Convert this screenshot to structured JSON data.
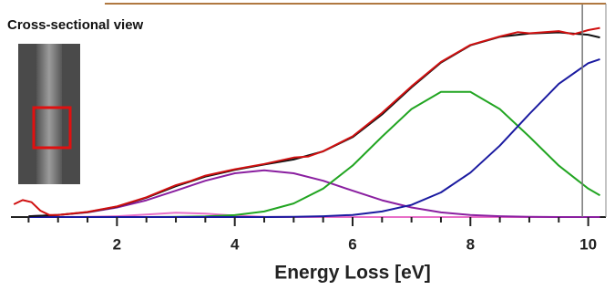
{
  "chart_data": {
    "type": "line",
    "inset_title": "Cross-sectional view",
    "x_label": "Energy Loss [eV]",
    "xlim": [
      0.2,
      10.3
    ],
    "xticks": [
      2,
      4,
      6,
      8,
      10
    ],
    "xminorticks": [
      0.5,
      1,
      1.5,
      2.5,
      3,
      3.5,
      4.5,
      5,
      5.5,
      6.5,
      7,
      7.5,
      8.5,
      9,
      9.5
    ],
    "ylim": [
      0,
      1
    ],
    "marker_line_x": 9.9,
    "marker_line_color": "#777777",
    "series": [
      {
        "color": "#e86fc8",
        "x": [
          0.5,
          1,
          1.5,
          2,
          2.5,
          3,
          3.5,
          4,
          4.5,
          5,
          5.5,
          6,
          6.5,
          7,
          7.5,
          8,
          8.5,
          9,
          9.5,
          10,
          10.2
        ],
        "values": [
          0,
          0,
          0.001,
          0.004,
          0.012,
          0.02,
          0.016,
          0.007,
          0.001,
          0,
          0,
          0,
          0,
          0,
          0,
          0,
          0,
          0,
          0,
          0,
          0
        ]
      },
      {
        "color": "#8a1fa0",
        "x": [
          0.5,
          1,
          1.5,
          2,
          2.5,
          3,
          3.5,
          4,
          4.5,
          5,
          5.5,
          6,
          6.5,
          7,
          7.5,
          8,
          8.5,
          9,
          9.5,
          10,
          10.2
        ],
        "values": [
          0.004,
          0.01,
          0.022,
          0.045,
          0.079,
          0.124,
          0.171,
          0.206,
          0.22,
          0.206,
          0.171,
          0.124,
          0.079,
          0.045,
          0.022,
          0.01,
          0.004,
          0.001,
          0,
          0,
          0
        ]
      },
      {
        "color": "#22a522",
        "x": [
          0.5,
          1,
          1.5,
          2,
          2.5,
          3,
          3.5,
          4,
          4.5,
          5,
          5.5,
          6,
          6.5,
          7,
          7.5,
          8,
          8.5,
          9,
          9.5,
          10,
          10.2
        ],
        "values": [
          0,
          0,
          0,
          0,
          0,
          0.001,
          0.003,
          0.009,
          0.026,
          0.064,
          0.134,
          0.242,
          0.378,
          0.508,
          0.589,
          0.589,
          0.508,
          0.378,
          0.242,
          0.134,
          0.102
        ]
      },
      {
        "color": "#1a1aa0",
        "x": [
          0.5,
          1,
          1.5,
          2,
          2.5,
          3,
          3.5,
          4,
          4.5,
          5,
          5.5,
          6,
          6.5,
          7,
          7.5,
          8,
          8.5,
          9,
          9.5,
          10,
          10.2
        ],
        "values": [
          0,
          0,
          0,
          0,
          0,
          0,
          0,
          0,
          0,
          0.001,
          0.004,
          0.01,
          0.026,
          0.057,
          0.116,
          0.209,
          0.336,
          0.485,
          0.627,
          0.724,
          0.743
        ]
      },
      {
        "color": "#111111",
        "x": [
          0.5,
          1,
          1.5,
          2,
          2.5,
          3,
          3.5,
          4,
          4.5,
          5,
          5.5,
          6,
          6.5,
          7,
          7.5,
          8,
          8.5,
          9,
          9.5,
          10,
          10.2
        ],
        "values": [
          0.004,
          0.01,
          0.023,
          0.049,
          0.091,
          0.145,
          0.19,
          0.222,
          0.247,
          0.271,
          0.309,
          0.376,
          0.483,
          0.61,
          0.727,
          0.808,
          0.848,
          0.864,
          0.869,
          0.858,
          0.845
        ]
      },
      {
        "color": "#d01010",
        "x": [
          0.25,
          0.4,
          0.55,
          0.7,
          0.85,
          1,
          1.5,
          2,
          2.5,
          3,
          3.25,
          3.5,
          4,
          4.5,
          5,
          5.25,
          5.5,
          6,
          6.5,
          7,
          7.5,
          8,
          8.5,
          8.8,
          9,
          9.5,
          9.75,
          10,
          10.2
        ],
        "values": [
          0.06,
          0.08,
          0.07,
          0.03,
          0.01,
          0.01,
          0.024,
          0.05,
          0.093,
          0.15,
          0.17,
          0.195,
          0.225,
          0.25,
          0.28,
          0.285,
          0.31,
          0.38,
          0.49,
          0.615,
          0.73,
          0.81,
          0.85,
          0.87,
          0.865,
          0.875,
          0.86,
          0.88,
          0.89
        ]
      }
    ]
  }
}
